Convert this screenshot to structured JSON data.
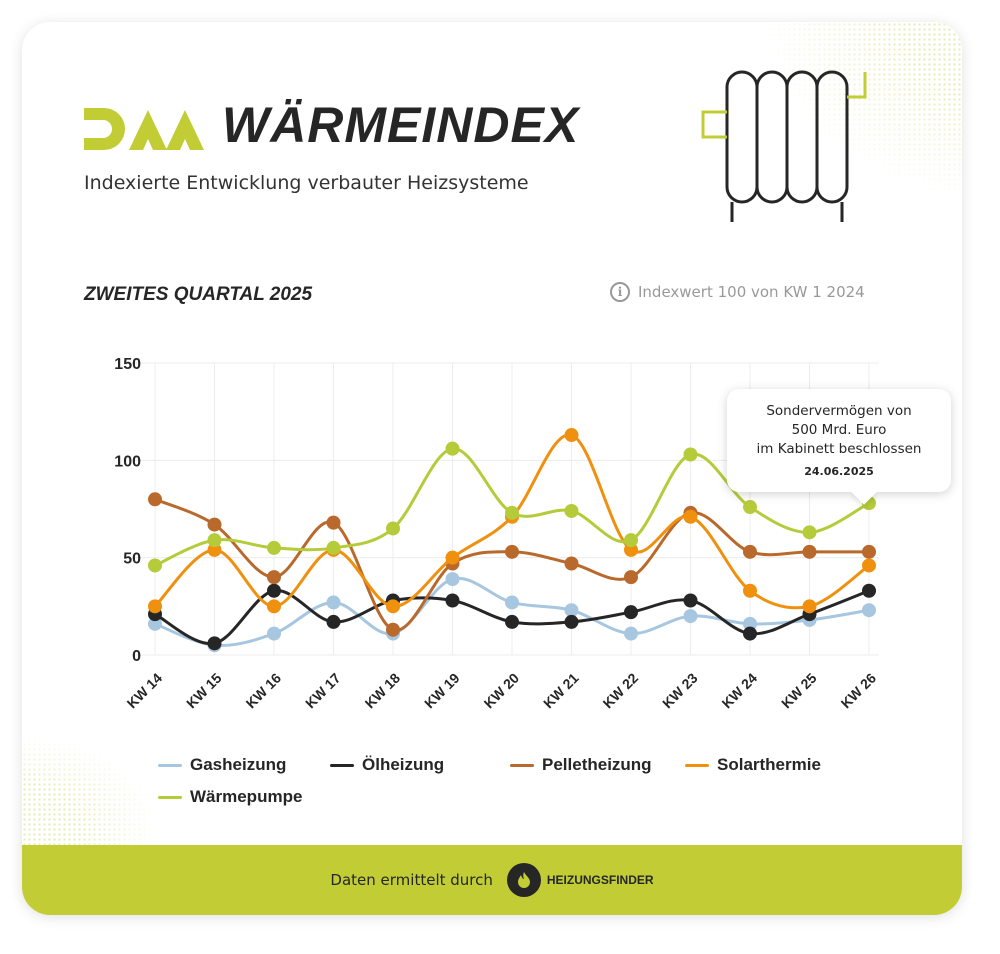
{
  "header": {
    "logo_text": "DAA",
    "title": "WÄRMEINDEX",
    "subtitle": "Indexierte Entwicklung verbauter Heizsysteme"
  },
  "section": {
    "quarter": "ZWEITES QUARTAL 2025",
    "note": "Indexwert 100 von KW 1 2024",
    "note_icon": "info-icon"
  },
  "tooltip": {
    "lines": [
      "Sondervermögen von",
      "500 Mrd. Euro",
      "im Kabinett beschlossen"
    ],
    "date": "24.06.2025"
  },
  "footer": {
    "text": "Daten ermittelt durch",
    "brand": "HEIZUNGSFINDER",
    "brand_icon": "flame-icon"
  },
  "colors": {
    "accent": "#c2cd36",
    "dark": "#262626"
  },
  "chart_data": {
    "type": "line",
    "title": "ZWEITES QUARTAL 2025",
    "xlabel": "",
    "ylabel": "",
    "ylim": [
      0,
      150
    ],
    "yticks": [
      0,
      50,
      100,
      150
    ],
    "grid": true,
    "legend_position": "bottom",
    "categories": [
      "KW 14",
      "KW 15",
      "KW 16",
      "KW 17",
      "KW 18",
      "KW 19",
      "KW 20",
      "KW 21",
      "KW 22",
      "KW 23",
      "KW 24",
      "KW 25",
      "KW 26"
    ],
    "series": [
      {
        "name": "Gasheizung",
        "color": "#a7c6e0",
        "values": [
          16,
          5,
          11,
          27,
          11,
          39,
          27,
          23,
          11,
          20,
          16,
          18,
          23
        ]
      },
      {
        "name": "Ölheizung",
        "color": "#262626",
        "values": [
          21,
          6,
          33,
          17,
          28,
          28,
          17,
          17,
          22,
          28,
          11,
          21,
          33
        ]
      },
      {
        "name": "Pelletheizung",
        "color": "#b8692b",
        "values": [
          80,
          67,
          40,
          68,
          13,
          47,
          53,
          47,
          40,
          73,
          53,
          53,
          53
        ]
      },
      {
        "name": "Solarthermie",
        "color": "#f0900f",
        "values": [
          25,
          54,
          25,
          54,
          25,
          50,
          71,
          113,
          54,
          71,
          33,
          25,
          46
        ]
      },
      {
        "name": "Wärmepumpe",
        "color": "#b5cb3a",
        "values": [
          46,
          59,
          55,
          55,
          65,
          106,
          73,
          74,
          59,
          103,
          76,
          63,
          78
        ]
      }
    ]
  }
}
